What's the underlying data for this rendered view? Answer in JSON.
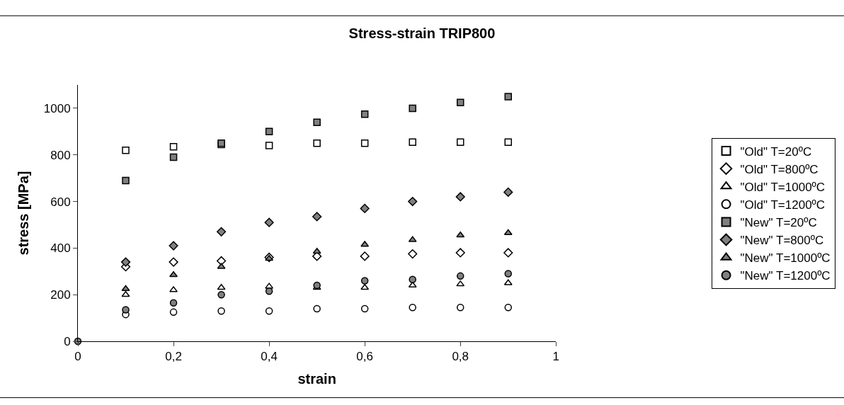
{
  "chart_data": {
    "type": "scatter",
    "title": "Stress-strain TRIP800",
    "xlabel": "strain",
    "ylabel": "stress [MPa]",
    "x": [
      0,
      0.1,
      0.2,
      0.3,
      0.4,
      0.5,
      0.6,
      0.7,
      0.8,
      0.9
    ],
    "xlim": [
      0,
      1
    ],
    "xticks": [
      0,
      {
        "value": 0.2,
        "label": "0,2"
      },
      {
        "value": 0.4,
        "label": "0,4"
      },
      {
        "value": 0.6,
        "label": "0,6"
      },
      {
        "value": 0.8,
        "label": "0,8"
      },
      1
    ],
    "ylim": [
      0,
      1100
    ],
    "yticks": [
      0,
      200,
      400,
      600,
      800,
      1000
    ],
    "legend": "right",
    "series": [
      {
        "name": "\"Old\" T=20ºC",
        "color": "#ffffff",
        "marker": "square",
        "values": [
          null,
          820,
          835,
          845,
          840,
          850,
          850,
          855,
          855,
          855
        ]
      },
      {
        "name": "\"Old\" T=800ºC",
        "color": "#ffffff",
        "marker": "diamond",
        "values": [
          null,
          320,
          340,
          345,
          360,
          365,
          365,
          375,
          380,
          380
        ]
      },
      {
        "name": "\"Old\" T=1000ºC",
        "color": "#ffffff",
        "marker": "triangle",
        "values": [
          null,
          200,
          220,
          230,
          235,
          230,
          230,
          240,
          245,
          250
        ]
      },
      {
        "name": "\"Old\" T=1200ºC",
        "color": "#ffffff",
        "marker": "circle",
        "values": [
          null,
          115,
          125,
          130,
          130,
          140,
          140,
          145,
          145,
          145
        ]
      },
      {
        "name": "\"New\" T=20ºC",
        "color": "#808080",
        "marker": "square",
        "values": [
          null,
          690,
          790,
          850,
          900,
          940,
          975,
          1000,
          1025,
          1050
        ]
      },
      {
        "name": "\"New\" T=800ºC",
        "color": "#808080",
        "marker": "diamond",
        "values": [
          null,
          340,
          410,
          470,
          510,
          535,
          570,
          600,
          620,
          640
        ]
      },
      {
        "name": "\"New\" T=1000ºC",
        "color": "#808080",
        "marker": "triangle",
        "values": [
          null,
          225,
          285,
          320,
          355,
          385,
          415,
          435,
          455,
          465
        ]
      },
      {
        "name": "\"New\" T=1200ºC",
        "color": "#808080",
        "marker": "circle",
        "values": [
          0,
          135,
          165,
          200,
          215,
          240,
          260,
          265,
          280,
          290
        ]
      }
    ]
  }
}
